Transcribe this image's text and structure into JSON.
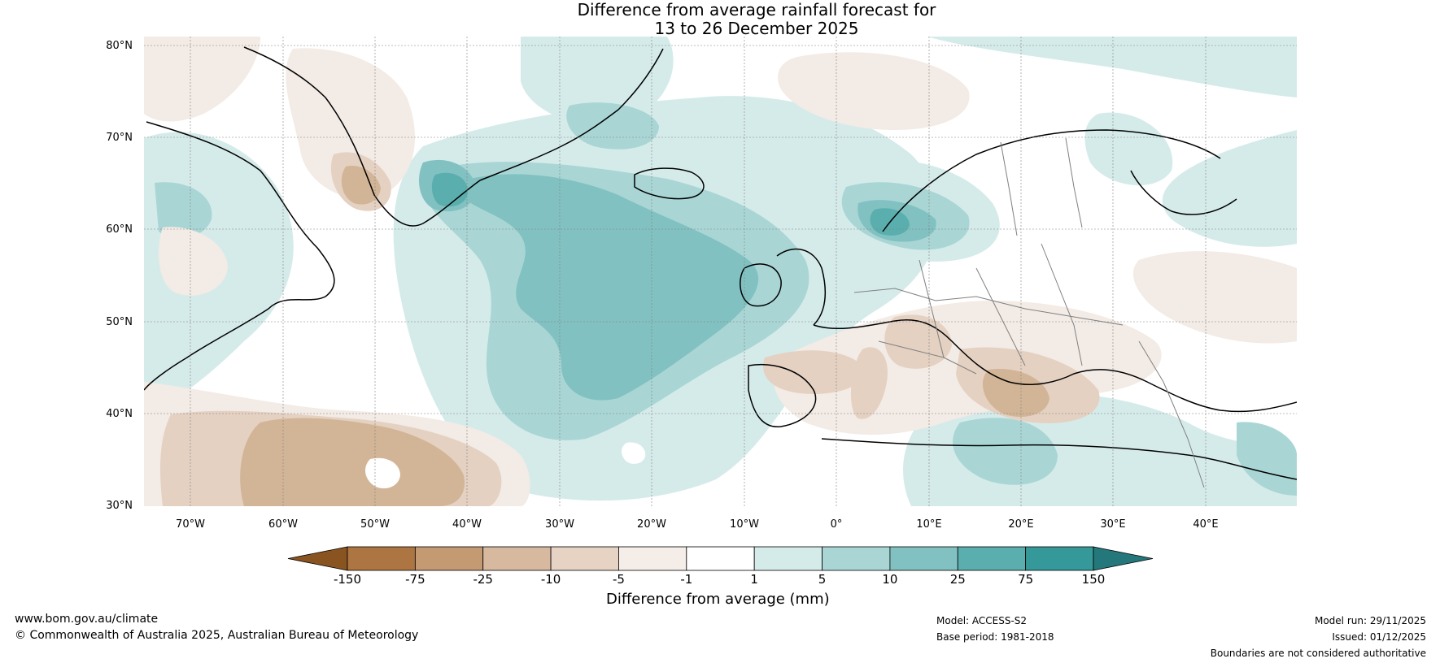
{
  "title": {
    "line1": "Difference from average rainfall forecast for",
    "line2": "13 to 26 December 2025"
  },
  "map": {
    "lat_labels": [
      "80°N",
      "70°N",
      "60°N",
      "50°N",
      "40°N",
      "30°N"
    ],
    "lon_labels": [
      "70°W",
      "60°W",
      "50°W",
      "40°W",
      "30°W",
      "20°W",
      "10°W",
      "0°",
      "10°E",
      "20°E",
      "30°E",
      "40°E"
    ],
    "colors": {
      "ocean_blue_light": "#d5ebea",
      "blue_mid": "#a9d6d5",
      "blue_strong": "#82c1c1",
      "blue_deep": "#5aafae",
      "brown_light": "#f3ebe5",
      "brown_mid": "#e4d1c2",
      "brown_strong": "#d2b596",
      "coast": "#000000",
      "borders": "#808080"
    }
  },
  "colorbar": {
    "ticks": [
      "-150",
      "-75",
      "-25",
      "-10",
      "-5",
      "-1",
      "1",
      "5",
      "10",
      "25",
      "75",
      "150"
    ],
    "colors": [
      "#8a5421",
      "#ad7541",
      "#c39a72",
      "#d7b9a0",
      "#e6d3c4",
      "#f5eee8",
      "#ffffff",
      "#d5ebea",
      "#a9d6d5",
      "#82c1c1",
      "#5aafae",
      "#35999a",
      "#24777a"
    ],
    "title": "Difference from average (mm)"
  },
  "footer": {
    "website": "www.bom.gov.au/climate",
    "copyright": "© Commonwealth of Australia 2025, Australian Bureau of Meteorology",
    "model": "Model: ACCESS-S2",
    "base_period": "Base period: 1981-2018",
    "model_run": "Model run: 29/11/2025",
    "issued": "Issued: 01/12/2025",
    "disclaimer": "Boundaries are not considered authoritative"
  }
}
